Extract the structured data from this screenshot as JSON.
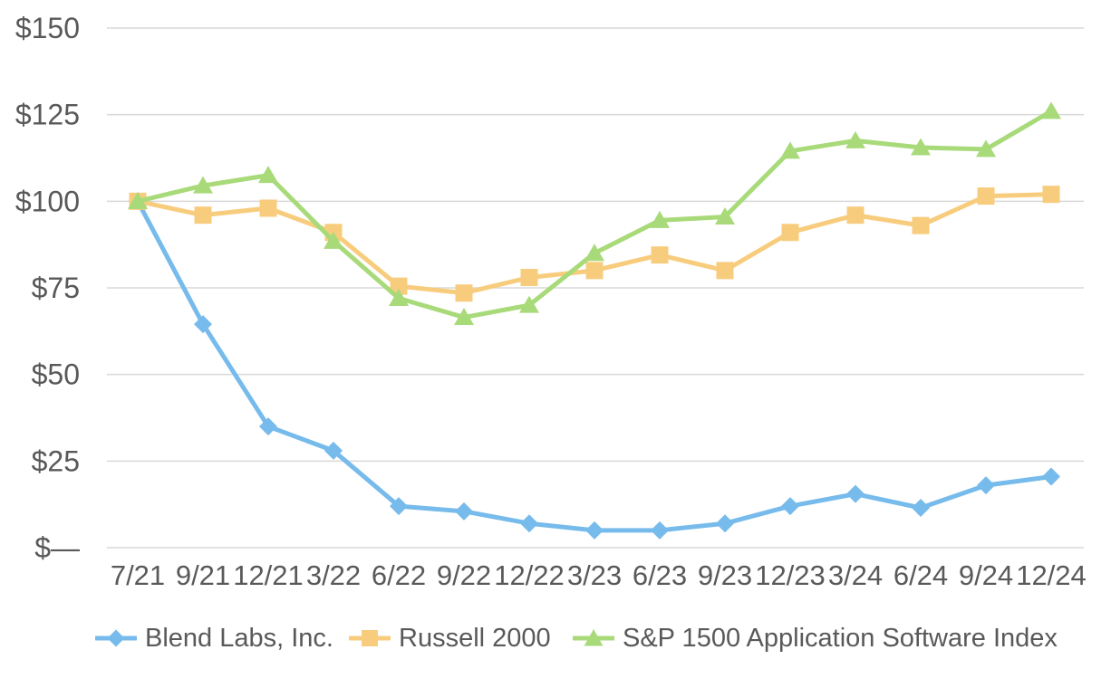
{
  "chart_data": {
    "type": "line",
    "x_categories": [
      "7/21",
      "9/21",
      "12/21",
      "3/22",
      "6/22",
      "9/22",
      "12/22",
      "3/23",
      "6/23",
      "9/23",
      "12/23",
      "3/24",
      "6/24",
      "9/24",
      "12/24"
    ],
    "y_axis": {
      "range": [
        0,
        150
      ],
      "ticks": [
        {
          "value": 0,
          "label": "$—"
        },
        {
          "value": 25,
          "label": "$25"
        },
        {
          "value": 50,
          "label": "$50"
        },
        {
          "value": 75,
          "label": "$75"
        },
        {
          "value": 100,
          "label": "$100"
        },
        {
          "value": 125,
          "label": "$125"
        },
        {
          "value": 150,
          "label": "$150"
        }
      ]
    },
    "grid": "horizontal",
    "legend_position": "bottom",
    "series": [
      {
        "name": "Blend Labs, Inc.",
        "marker": "diamond",
        "color": "#76BBEB",
        "values": [
          100,
          64.5,
          35,
          28,
          12,
          10.5,
          7,
          5,
          5,
          7,
          12,
          15.5,
          11.5,
          18,
          20.5
        ]
      },
      {
        "name": "Russell 2000",
        "marker": "square",
        "color": "#F8CC7D",
        "values": [
          100,
          96,
          98,
          91,
          75.5,
          73.5,
          78,
          80,
          84.5,
          80,
          91,
          96,
          93,
          101.5,
          102
        ]
      },
      {
        "name": "S&P 1500 Application Software Index",
        "marker": "triangle",
        "color": "#A9DA7A",
        "values": [
          100,
          104.5,
          107.5,
          88.5,
          72,
          66.5,
          70,
          85,
          94.5,
          95.5,
          114.5,
          117.5,
          115.5,
          115,
          126
        ]
      }
    ],
    "style_colors": {
      "text": "#595959",
      "gridline": "#D9D9D9",
      "background": "#FFFFFF"
    }
  }
}
